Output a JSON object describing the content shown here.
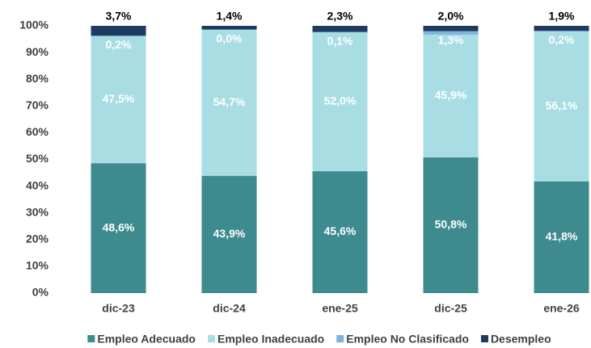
{
  "chart_data": {
    "type": "stacked_bar",
    "categories": [
      "dic-23",
      "dic-24",
      "ene-25",
      "dic-25",
      "ene-26"
    ],
    "series": [
      {
        "name": "Empleo Adecuado",
        "color": "#3d8a8f",
        "values": [
          48.6,
          43.9,
          45.6,
          50.8,
          41.8
        ],
        "value_labels": [
          "48,6%",
          "43,9%",
          "45,6%",
          "50,8%",
          "41,8%"
        ]
      },
      {
        "name": "Empleo Inadecuado",
        "color": "#a8dde3",
        "values": [
          47.5,
          54.7,
          52.0,
          45.9,
          56.1
        ],
        "value_labels": [
          "47,5%",
          "54,7%",
          "52,0%",
          "45,9%",
          "56,1%"
        ]
      },
      {
        "name": "Empleo No Clasificado",
        "color": "#7fb3dd",
        "values": [
          0.2,
          0.0,
          0.1,
          1.3,
          0.2
        ],
        "value_labels": [
          "0,2%",
          "0,0%",
          "0,1%",
          "1,3%",
          "0,2%"
        ]
      },
      {
        "name": "Desempleo",
        "color": "#1f3a5f",
        "values": [
          3.7,
          1.4,
          2.3,
          2.0,
          1.9
        ],
        "value_labels": [
          "3,7%",
          "1,4%",
          "2,3%",
          "2,0%",
          "1,9%"
        ]
      }
    ],
    "ylim": [
      0,
      100
    ],
    "yticks": [
      {
        "value": 0,
        "label": "0%"
      },
      {
        "value": 10,
        "label": "10%"
      },
      {
        "value": 20,
        "label": "20%"
      },
      {
        "value": 30,
        "label": "30%"
      },
      {
        "value": 40,
        "label": "40%"
      },
      {
        "value": 50,
        "label": "50%"
      },
      {
        "value": 60,
        "label": "60%"
      },
      {
        "value": 70,
        "label": "70%"
      },
      {
        "value": 80,
        "label": "80%"
      },
      {
        "value": 90,
        "label": "90%"
      },
      {
        "value": 100,
        "label": "100%"
      }
    ],
    "legend": "bottom"
  }
}
